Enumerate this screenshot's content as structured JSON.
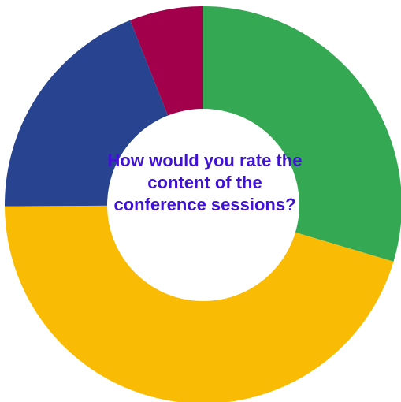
{
  "chart_data": {
    "type": "pie",
    "variant": "donut",
    "center_text": "How would you rate the content of the conference sessions?",
    "slices": [
      {
        "value": 29.6,
        "color": "#34a853"
      },
      {
        "value": 45.3,
        "color": "#fabb05"
      },
      {
        "value": 19.1,
        "color": "#284390"
      },
      {
        "value": 6.0,
        "color": "#a3004c"
      }
    ],
    "start": "12 o'clock",
    "direction": "clockwise",
    "legend": "none"
  }
}
